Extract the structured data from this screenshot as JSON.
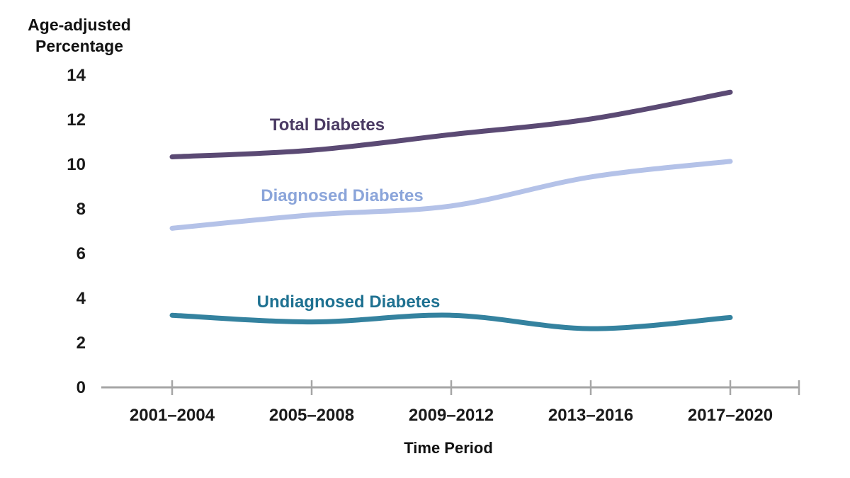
{
  "chart_data": {
    "type": "line",
    "title": "",
    "xlabel": "Time Period",
    "ylabel": "Age-adjusted Percentage",
    "ylabel_lines": [
      "Age-adjusted",
      "Percentage"
    ],
    "categories": [
      "2001–2004",
      "2005–2008",
      "2009–2012",
      "2013–2016",
      "2017–2020"
    ],
    "series": [
      {
        "name": "Total Diabetes",
        "values": [
          10.3,
          10.6,
          11.3,
          12.0,
          13.2
        ],
        "color": "#5b4a74",
        "label_color": "#4a3a63"
      },
      {
        "name": "Diagnosed Diabetes",
        "values": [
          7.1,
          7.7,
          8.1,
          9.4,
          10.1
        ],
        "color": "#b4c2e8",
        "label_color": "#8ba5da"
      },
      {
        "name": "Undiagnosed Diabetes",
        "values": [
          3.2,
          2.9,
          3.2,
          2.6,
          3.1
        ],
        "color": "#34829f",
        "label_color": "#1e7191"
      }
    ],
    "yticks": [
      0,
      2,
      4,
      6,
      8,
      10,
      12,
      14
    ],
    "ylim": [
      0,
      14
    ],
    "grid": false,
    "legend_position": "inline-labels",
    "axis_color": "#a6a6a6",
    "text_color": "#1a1a1a"
  }
}
